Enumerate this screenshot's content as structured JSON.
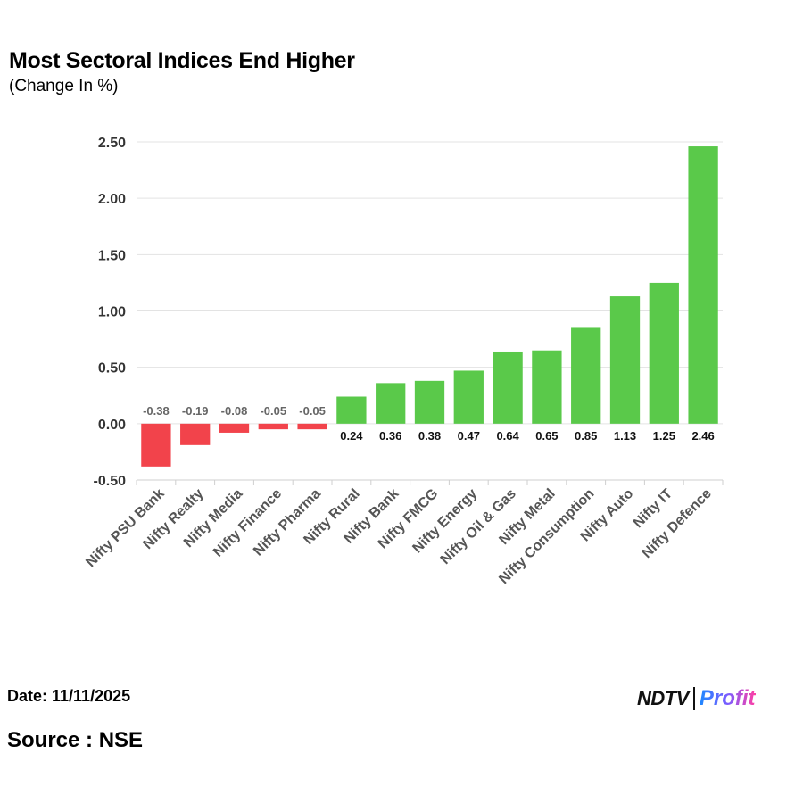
{
  "header": {
    "title": "Most Sectoral Indices End Higher",
    "subtitle": "(Change In %)"
  },
  "footer": {
    "date": "Date: 11/11/2025",
    "source": "Source : NSE",
    "logo_ndtv": "NDTV",
    "logo_profit": "Profit"
  },
  "colors": {
    "positive": "#5ac94a",
    "negative": "#f2434b",
    "grid": "#e3e3e3"
  },
  "chart_data": {
    "type": "bar",
    "categories": [
      "Nifty PSU Bank",
      "Nifty Realty",
      "Nifty Media",
      "Nifty Finance",
      "Nifty Pharma",
      "Nifty Rural",
      "Nifty Bank",
      "Nifty FMCG",
      "Nifty Energy",
      "Nifty Oil & Gas",
      "Nifty Metal",
      "Nifty Consumption",
      "Nifty Auto",
      "Nifty IT",
      "Nifty Defence"
    ],
    "values": [
      -0.38,
      -0.19,
      -0.08,
      -0.05,
      -0.05,
      0.24,
      0.36,
      0.38,
      0.47,
      0.64,
      0.65,
      0.85,
      1.13,
      1.25,
      2.46
    ],
    "value_labels": [
      "-0.38",
      "-0.19",
      "-0.08",
      "-0.05",
      "-0.05",
      "0.24",
      "0.36",
      "0.38",
      "0.47",
      "0.64",
      "0.65",
      "0.85",
      "1.13",
      "1.25",
      "2.46"
    ],
    "yticks": [
      -0.5,
      0,
      0.5,
      1,
      1.5,
      2,
      2.5
    ],
    "ytick_labels": [
      "-0.50",
      "0.00",
      "0.50",
      "1.00",
      "1.50",
      "2.00",
      "2.50"
    ],
    "ylim": [
      -0.5,
      2.5
    ],
    "title": "Most Sectoral Indices End Higher",
    "subtitle": "(Change In %)",
    "grid": true,
    "legend": false
  }
}
